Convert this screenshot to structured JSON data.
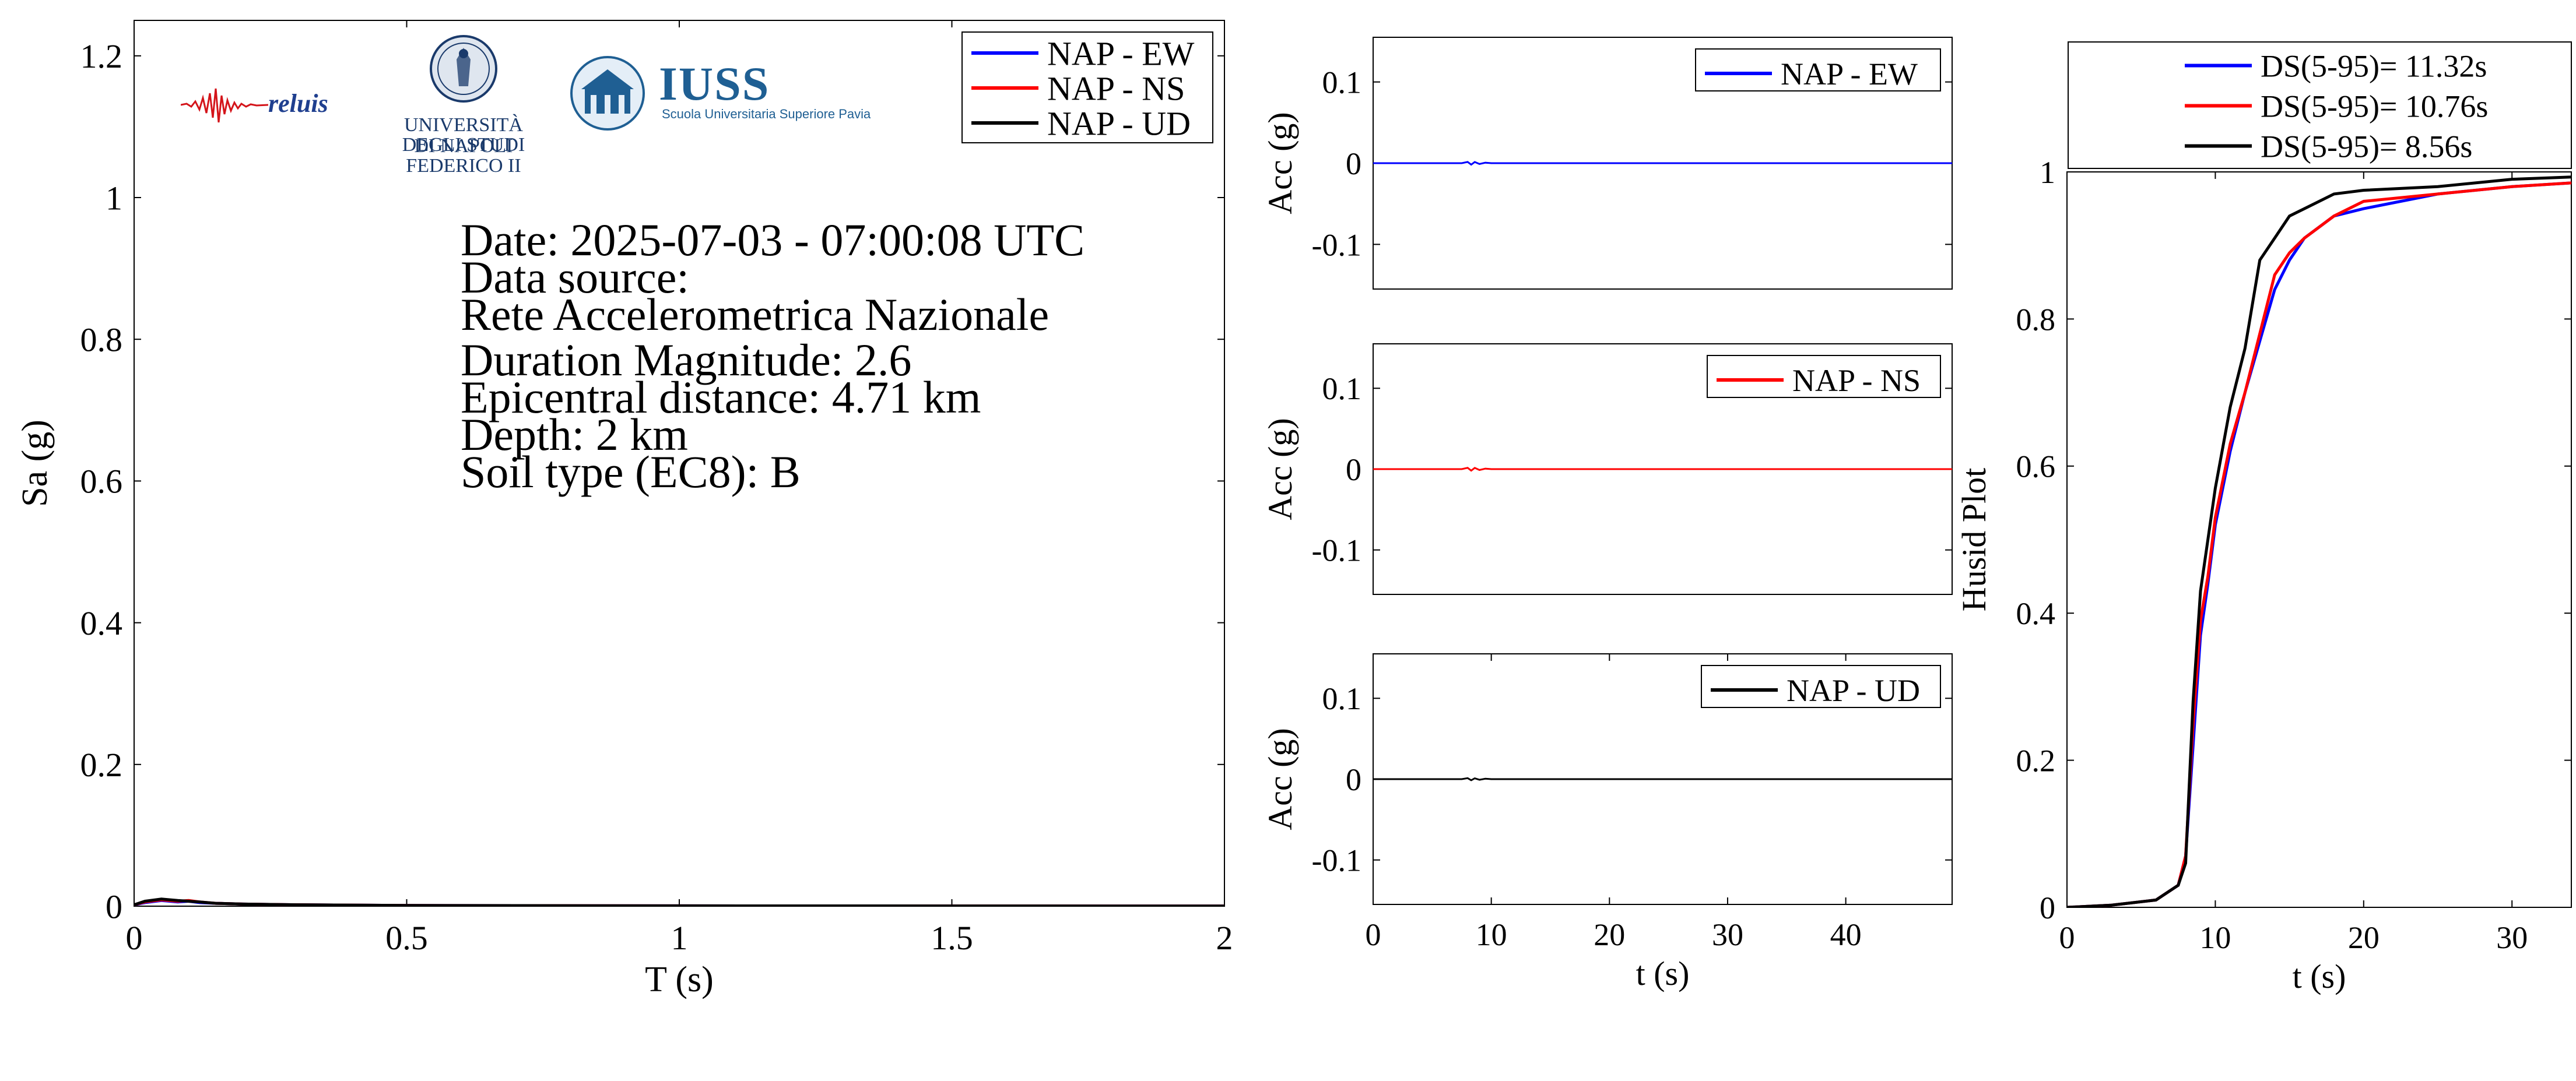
{
  "colors": {
    "ew": "#0000ff",
    "ns": "#ff0000",
    "ud": "#000000",
    "axes": "#000000",
    "unina_blue": "#1a3a6b",
    "iuss_blue": "#1f5f93"
  },
  "logos": {
    "reluis": {
      "word": "reluis",
      "icon": "seismogram-icon"
    },
    "unina": {
      "line1": "UNIVERSITÀ DEGLI STUDI",
      "line2": "DI NAPOLI FEDERICO II",
      "icon": "university-seal-icon"
    },
    "iuss": {
      "name": "IUSS",
      "subtitle": "Scuola Universitaria Superiore Pavia",
      "icon": "iuss-building-icon"
    }
  },
  "event_info": {
    "date": "Date: 2025-07-03 - 07:00:08 UTC",
    "source_label": "Data source:",
    "source": "Rete Accelerometrica Nazionale",
    "magnitude": "Duration Magnitude: 2.6",
    "distance": "Epicentral distance: 4.71 km",
    "depth": "Depth: 2 km",
    "soil": "Soil type (EC8): B"
  },
  "chart_data": [
    {
      "type": "line",
      "panel": "response-spectrum",
      "xlabel": "T (s)",
      "ylabel": "Sa (g)",
      "xlim": [
        0,
        2
      ],
      "ylim": [
        0,
        1.25
      ],
      "xticks": [
        0,
        0.5,
        1,
        1.5,
        2
      ],
      "xtick_labels": [
        "0",
        "0.5",
        "1",
        "1.5",
        "2"
      ],
      "yticks": [
        0,
        0.2,
        0.4,
        0.6,
        0.8,
        1,
        1.2
      ],
      "ytick_labels": [
        "0",
        "0.2",
        "0.4",
        "0.6",
        "0.8",
        "1",
        "1.2"
      ],
      "legend_position": "top-right",
      "series": [
        {
          "name": "NAP - EW",
          "color": "#0000ff",
          "x": [
            0,
            0.02,
            0.05,
            0.08,
            0.1,
            0.12,
            0.15,
            0.2,
            0.3,
            0.5,
            1,
            1.5,
            2
          ],
          "y": [
            0.002,
            0.005,
            0.008,
            0.006,
            0.007,
            0.005,
            0.004,
            0.003,
            0.002,
            0.001,
            0.0005,
            0.0003,
            0.0002
          ]
        },
        {
          "name": "NAP - NS",
          "color": "#ff0000",
          "x": [
            0,
            0.02,
            0.05,
            0.08,
            0.1,
            0.12,
            0.15,
            0.2,
            0.3,
            0.5,
            1,
            1.5,
            2
          ],
          "y": [
            0.002,
            0.006,
            0.009,
            0.007,
            0.008,
            0.006,
            0.004,
            0.003,
            0.002,
            0.001,
            0.0005,
            0.0003,
            0.0002
          ]
        },
        {
          "name": "NAP - UD",
          "color": "#000000",
          "x": [
            0,
            0.02,
            0.05,
            0.08,
            0.1,
            0.12,
            0.15,
            0.2,
            0.3,
            0.5,
            1,
            1.5,
            2
          ],
          "y": [
            0.002,
            0.007,
            0.01,
            0.008,
            0.007,
            0.006,
            0.004,
            0.003,
            0.002,
            0.001,
            0.0005,
            0.0003,
            0.0002
          ]
        }
      ]
    },
    {
      "type": "line",
      "panel": "accelerogram-ew",
      "xlabel": "",
      "ylabel": "Acc (g)",
      "xlim": [
        0,
        49
      ],
      "ylim": [
        -0.155,
        0.155
      ],
      "yticks": [
        0.1,
        0,
        -0.1
      ],
      "ytick_labels": [
        "0.1",
        "0",
        "-0.1"
      ],
      "legend_position": "top-right",
      "series": [
        {
          "name": "NAP - EW",
          "color": "#0000ff",
          "x": [
            0,
            7.5,
            8,
            8.3,
            8.6,
            9,
            9.5,
            10,
            49
          ],
          "y": [
            0,
            0,
            0.0015,
            -0.0018,
            0.0014,
            -0.001,
            0.0006,
            0,
            0
          ]
        }
      ]
    },
    {
      "type": "line",
      "panel": "accelerogram-ns",
      "xlabel": "",
      "ylabel": "Acc (g)",
      "xlim": [
        0,
        49
      ],
      "ylim": [
        -0.155,
        0.155
      ],
      "yticks": [
        0.1,
        0,
        -0.1
      ],
      "ytick_labels": [
        "0.1",
        "0",
        "-0.1"
      ],
      "legend_position": "top-right",
      "series": [
        {
          "name": "NAP - NS",
          "color": "#ff0000",
          "x": [
            0,
            7.5,
            8,
            8.3,
            8.6,
            9,
            9.5,
            10,
            49
          ],
          "y": [
            0,
            0,
            0.0016,
            -0.0019,
            0.0015,
            -0.0011,
            0.0006,
            0,
            0
          ]
        }
      ]
    },
    {
      "type": "line",
      "panel": "accelerogram-ud",
      "xlabel": "t (s)",
      "ylabel": "Acc (g)",
      "xlim": [
        0,
        49
      ],
      "ylim": [
        -0.155,
        0.155
      ],
      "xticks": [
        0,
        10,
        20,
        30,
        40
      ],
      "xtick_labels": [
        "0",
        "10",
        "20",
        "30",
        "40"
      ],
      "yticks": [
        0.1,
        0,
        -0.1
      ],
      "ytick_labels": [
        "0.1",
        "0",
        "-0.1"
      ],
      "legend_position": "top-right",
      "series": [
        {
          "name": "NAP - UD",
          "color": "#000000",
          "x": [
            0,
            7.5,
            8,
            8.3,
            8.6,
            9,
            9.5,
            10,
            49
          ],
          "y": [
            0,
            0,
            0.0012,
            -0.0014,
            0.001,
            -0.0008,
            0.0005,
            0,
            0
          ]
        }
      ]
    },
    {
      "type": "line",
      "panel": "husid-plot",
      "xlabel": "t (s)",
      "ylabel": "Husid Plot",
      "xlim": [
        0,
        34
      ],
      "ylim": [
        0,
        1
      ],
      "xticks": [
        0,
        10,
        20,
        30
      ],
      "xtick_labels": [
        "0",
        "10",
        "20",
        "30"
      ],
      "yticks": [
        0,
        0.2,
        0.4,
        0.6,
        0.8,
        1
      ],
      "ytick_labels": [
        "0",
        "0.2",
        "0.4",
        "0.6",
        "0.8",
        "1"
      ],
      "legend_position": "top-outside",
      "series": [
        {
          "name": "DS(5-95)= 11.32s",
          "color": "#0000ff",
          "x": [
            0,
            3,
            6,
            7.5,
            8,
            8.5,
            9,
            9.5,
            10,
            11,
            12,
            13,
            14,
            15,
            16,
            18,
            20,
            25,
            30,
            34
          ],
          "y": [
            0,
            0.003,
            0.01,
            0.03,
            0.07,
            0.22,
            0.37,
            0.44,
            0.52,
            0.62,
            0.7,
            0.77,
            0.84,
            0.88,
            0.91,
            0.94,
            0.95,
            0.97,
            0.98,
            0.985
          ]
        },
        {
          "name": "DS(5-95)= 10.76s",
          "color": "#ff0000",
          "x": [
            0,
            3,
            6,
            7.5,
            8,
            8.5,
            9,
            9.5,
            10,
            11,
            12,
            13,
            14,
            15,
            16,
            18,
            20,
            25,
            30,
            34
          ],
          "y": [
            0,
            0.003,
            0.01,
            0.03,
            0.07,
            0.25,
            0.39,
            0.45,
            0.53,
            0.63,
            0.7,
            0.78,
            0.86,
            0.89,
            0.91,
            0.94,
            0.96,
            0.97,
            0.98,
            0.985
          ]
        },
        {
          "name": "DS(5-95)= 8.56s",
          "color": "#000000",
          "x": [
            0,
            3,
            6,
            7.5,
            8,
            8.5,
            9,
            9.5,
            10,
            11,
            12,
            13,
            14,
            15,
            16,
            18,
            20,
            25,
            30,
            34
          ],
          "y": [
            0,
            0.003,
            0.01,
            0.03,
            0.06,
            0.28,
            0.43,
            0.5,
            0.57,
            0.68,
            0.76,
            0.88,
            0.91,
            0.94,
            0.95,
            0.97,
            0.975,
            0.98,
            0.99,
            0.993
          ]
        }
      ]
    }
  ]
}
